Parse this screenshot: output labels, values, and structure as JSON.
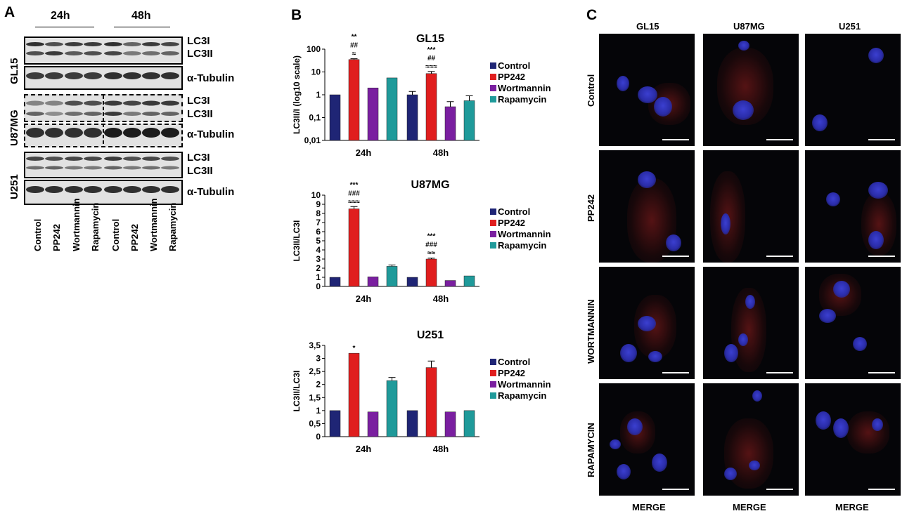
{
  "panel_a": {
    "letter": "A",
    "time_labels": [
      "24h",
      "48h"
    ],
    "cell_lines": [
      "GL15",
      "U87MG",
      "U251"
    ],
    "band_labels": {
      "lc3i": "LC3I",
      "lc3ii": "LC3II",
      "tubulin": "α-Tubulin"
    },
    "lanes": [
      "Control",
      "PP242",
      "Wortmannin",
      "Rapamycin",
      "Control",
      "PP242",
      "Wortmannin",
      "Rapamycin"
    ]
  },
  "panel_b": {
    "letter": "B"
  },
  "panel_c": {
    "letter": "C",
    "columns": [
      "GL15",
      "U87MG",
      "U251"
    ],
    "rows": [
      "Control",
      "PP242",
      "WORTMANNIN",
      "RAPAMYCIN"
    ],
    "footer": "MERGE"
  },
  "colors": {
    "Control": "#1f2575",
    "PP242": "#e01e1e",
    "Wortmannin": "#7a1fa0",
    "Rapamycin": "#1f9a9a"
  },
  "chart_data": [
    {
      "type": "bar",
      "title": "GL15",
      "ylabel": "LC3II/I (log10 scale)",
      "yscale": "log",
      "ylim": [
        0.01,
        100
      ],
      "yticks": [
        "0,01",
        "0,1",
        "1",
        "10",
        "100"
      ],
      "categories": [
        "24h",
        "48h"
      ],
      "series": [
        {
          "name": "Control",
          "values": [
            1,
            1.0
          ],
          "errors": [
            0,
            0.4
          ]
        },
        {
          "name": "PP242",
          "values": [
            35,
            8.5
          ],
          "errors": [
            3,
            2
          ]
        },
        {
          "name": "Wortmannin",
          "values": [
            2,
            0.3
          ],
          "errors": [
            0,
            0.2
          ]
        },
        {
          "name": "Rapamycin",
          "values": [
            5.5,
            0.55
          ],
          "errors": [
            0,
            0.35
          ]
        }
      ],
      "annotations": [
        {
          "group": "24h",
          "lines": [
            "**",
            "##",
            "≈"
          ]
        },
        {
          "group": "48h",
          "lines": [
            "***",
            "##",
            "≈≈≈"
          ]
        }
      ],
      "legend": "right"
    },
    {
      "type": "bar",
      "title": "U87MG",
      "ylabel": "LC3II/LC3I",
      "ylim": [
        0,
        10
      ],
      "yticks": [
        "0",
        "1",
        "2",
        "3",
        "4",
        "5",
        "6",
        "7",
        "8",
        "9",
        "10"
      ],
      "categories": [
        "24h",
        "48h"
      ],
      "series": [
        {
          "name": "Control",
          "values": [
            1,
            1
          ],
          "errors": [
            0,
            0
          ]
        },
        {
          "name": "PP242",
          "values": [
            8.5,
            3
          ],
          "errors": [
            0.25,
            0.1
          ]
        },
        {
          "name": "Wortmannin",
          "values": [
            1.05,
            0.65
          ],
          "errors": [
            0,
            0
          ]
        },
        {
          "name": "Rapamycin",
          "values": [
            2.2,
            1.15
          ],
          "errors": [
            0.15,
            0
          ]
        }
      ],
      "annotations": [
        {
          "group": "24h",
          "lines": [
            "***",
            "###",
            "≈≈≈"
          ]
        },
        {
          "group": "48h",
          "lines": [
            "***",
            "###",
            "≈≈"
          ]
        }
      ],
      "legend": "right"
    },
    {
      "type": "bar",
      "title": "U251",
      "ylabel": "LC3II/LC3I",
      "ylim": [
        0,
        3.5
      ],
      "yticks": [
        "0",
        "0,5",
        "1",
        "1,5",
        "2",
        "2,5",
        "3",
        "3,5"
      ],
      "categories": [
        "24h",
        "48h"
      ],
      "series": [
        {
          "name": "Control",
          "values": [
            1,
            1
          ],
          "errors": [
            0,
            0
          ]
        },
        {
          "name": "PP242",
          "values": [
            3.2,
            2.65
          ],
          "errors": [
            0,
            0.25
          ]
        },
        {
          "name": "Wortmannin",
          "values": [
            0.95,
            0.95
          ],
          "errors": [
            0,
            0
          ]
        },
        {
          "name": "Rapamycin",
          "values": [
            2.15,
            1.0
          ],
          "errors": [
            0.12,
            0
          ]
        }
      ],
      "annotations": [
        {
          "group": "24h",
          "lines": [
            "*"
          ]
        }
      ],
      "legend": "right"
    }
  ]
}
